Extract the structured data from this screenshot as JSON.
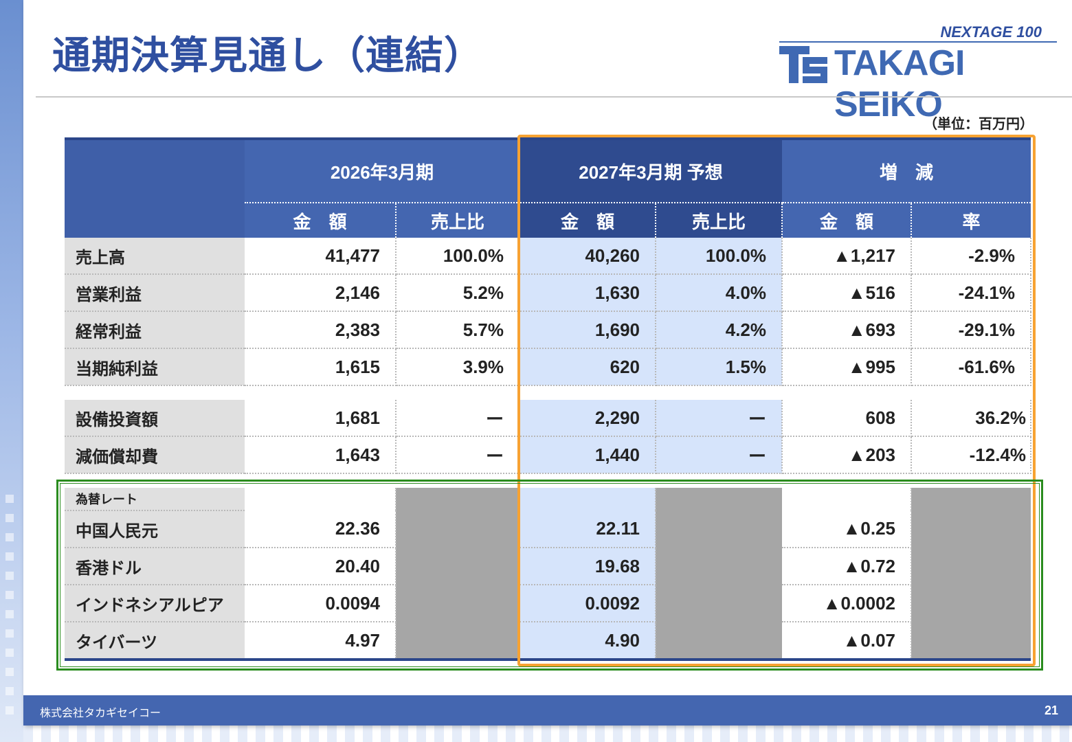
{
  "title": "通期決算見通し（連結）",
  "logo": {
    "tagline": "NEXTAGE 100",
    "name": "TAKAGI SEIKO"
  },
  "unit_note": "（単位：百万円）",
  "table": {
    "period_headers": [
      "2026年3月期",
      "2027年3月期 予想",
      "増　減"
    ],
    "sub_headers": [
      "金　額",
      "売上比",
      "金　額",
      "売上比",
      "金　額",
      "率"
    ],
    "pl_rows": [
      {
        "label": "売上高",
        "values": [
          "41,477",
          "100.0%",
          "40,260",
          "100.0%",
          "▲1,217",
          "-2.9%"
        ]
      },
      {
        "label": "営業利益",
        "values": [
          "2,146",
          "5.2%",
          "1,630",
          "4.0%",
          "▲516",
          "-24.1%"
        ]
      },
      {
        "label": "経常利益",
        "values": [
          "2,383",
          "5.7%",
          "1,690",
          "4.2%",
          "▲693",
          "-29.1%"
        ]
      },
      {
        "label": "当期純利益",
        "values": [
          "1,615",
          "3.9%",
          "620",
          "1.5%",
          "▲995",
          "-61.6%"
        ]
      }
    ],
    "capex_rows": [
      {
        "label": "設備投資額",
        "values": [
          "1,681",
          "ー",
          "2,290",
          "ー",
          "608",
          "36.2%"
        ]
      },
      {
        "label": "減価償却費",
        "values": [
          "1,643",
          "ー",
          "1,440",
          "ー",
          "▲203",
          "-12.4%"
        ]
      }
    ],
    "fx_title": "為替レート",
    "fx_rows": [
      {
        "label": "中国人民元",
        "values": [
          "22.36",
          "22.11",
          "▲0.25"
        ]
      },
      {
        "label": "香港ドル",
        "values": [
          "20.40",
          "19.68",
          "▲0.72"
        ]
      },
      {
        "label": "インドネシアルピア",
        "values": [
          "0.0094",
          "0.0092",
          "▲0.0002"
        ]
      },
      {
        "label": "タイバーツ",
        "values": [
          "4.97",
          "4.90",
          "▲0.07"
        ]
      }
    ]
  },
  "footer": {
    "company": "株式会社タカギセイコー",
    "page": "21"
  },
  "colors": {
    "title": "#2f4fa0",
    "header_blue": "#4466b0",
    "header_dark": "#2f4b8f",
    "forecast_fill": "#d6e4fb",
    "highlight_orange": "#f7a232",
    "highlight_green": "#2a8c1e"
  }
}
